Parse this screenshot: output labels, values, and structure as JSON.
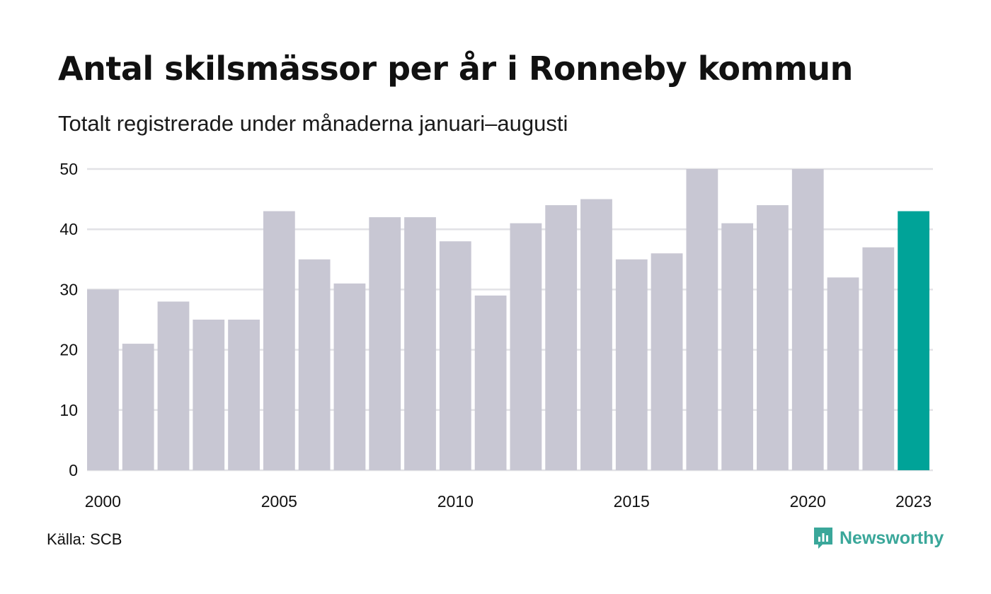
{
  "header": {
    "title": "Antal skilsmässor per år i Ronneby kommun",
    "subtitle": "Totalt registrerade under månaderna januari–augusti"
  },
  "footer": {
    "source": "Källa: SCB",
    "brand": "Newsworthy"
  },
  "colors": {
    "bar": "#c8c7d3",
    "highlight": "#00a398",
    "grid": "#e2e2e6",
    "brand": "#3aa79a"
  },
  "chart_data": {
    "type": "bar",
    "categories": [
      "2000",
      "2001",
      "2002",
      "2003",
      "2004",
      "2005",
      "2006",
      "2007",
      "2008",
      "2009",
      "2010",
      "2011",
      "2012",
      "2013",
      "2014",
      "2015",
      "2016",
      "2017",
      "2018",
      "2019",
      "2020",
      "2021",
      "2022",
      "2023"
    ],
    "values": [
      30,
      21,
      28,
      25,
      25,
      43,
      35,
      31,
      42,
      42,
      38,
      29,
      41,
      44,
      45,
      35,
      36,
      50,
      41,
      44,
      50,
      32,
      37,
      43
    ],
    "highlight_category": "2023",
    "ylim": [
      0,
      50
    ],
    "yticks": [
      0,
      10,
      20,
      30,
      40,
      50
    ],
    "xtick_labels": [
      "2000",
      "2005",
      "2010",
      "2015",
      "2020",
      "2023"
    ],
    "grid": true,
    "title": "",
    "xlabel": "",
    "ylabel": ""
  }
}
